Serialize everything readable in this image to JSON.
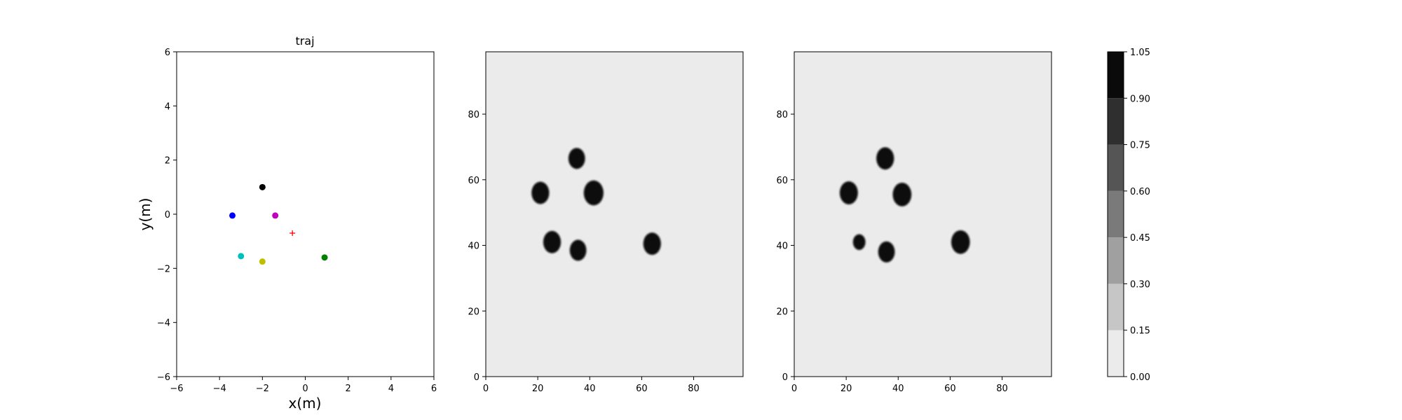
{
  "chart_data": [
    {
      "type": "scatter",
      "title": "traj",
      "xlabel": "x(m)",
      "ylabel": "y(m)",
      "xlim": [
        -6,
        6
      ],
      "ylim": [
        -6,
        6
      ],
      "xticks": [
        "−6",
        "−4",
        "−2",
        "0",
        "2",
        "4",
        "6"
      ],
      "xtick_values": [
        -6,
        -4,
        -2,
        0,
        2,
        4,
        6
      ],
      "yticks": [
        "−6",
        "−4",
        "−2",
        "0",
        "2",
        "4",
        "6"
      ],
      "ytick_values": [
        -6,
        -4,
        -2,
        0,
        2,
        4,
        6
      ],
      "grid": false,
      "points": [
        {
          "x": -2.0,
          "y": 1.0,
          "color": "#000000",
          "marker": "circle"
        },
        {
          "x": -3.4,
          "y": -0.05,
          "color": "#0000ff",
          "marker": "circle"
        },
        {
          "x": -1.4,
          "y": -0.05,
          "color": "#bf00bf",
          "marker": "circle"
        },
        {
          "x": -3.0,
          "y": -1.55,
          "color": "#00bfbf",
          "marker": "circle"
        },
        {
          "x": -2.0,
          "y": -1.75,
          "color": "#bfbf00",
          "marker": "circle"
        },
        {
          "x": 0.9,
          "y": -1.6,
          "color": "#008000",
          "marker": "circle"
        },
        {
          "x": -0.6,
          "y": -0.7,
          "color": "#ff0000",
          "marker": "plus"
        }
      ]
    },
    {
      "type": "heatmap",
      "xlim": [
        0,
        99
      ],
      "ylim": [
        0,
        99
      ],
      "xticks": [
        "0",
        "20",
        "40",
        "60",
        "80"
      ],
      "xtick_values": [
        0,
        20,
        40,
        60,
        80
      ],
      "yticks": [
        "0",
        "20",
        "40",
        "60",
        "80"
      ],
      "ytick_values": [
        0,
        20,
        40,
        60,
        80
      ],
      "background_value": 0.07,
      "blobs": [
        {
          "x": 35,
          "y": 66.5,
          "r": 3.2,
          "value": 1.0
        },
        {
          "x": 21,
          "y": 56,
          "r": 3.4,
          "value": 1.0
        },
        {
          "x": 41.5,
          "y": 56,
          "r": 3.8,
          "value": 1.0
        },
        {
          "x": 25.5,
          "y": 41,
          "r": 3.4,
          "value": 1.0
        },
        {
          "x": 35.5,
          "y": 38.5,
          "r": 3.2,
          "value": 1.0
        },
        {
          "x": 64,
          "y": 40.5,
          "r": 3.4,
          "value": 1.0
        }
      ]
    },
    {
      "type": "heatmap",
      "xlim": [
        0,
        99
      ],
      "ylim": [
        0,
        99
      ],
      "xticks": [
        "0",
        "20",
        "40",
        "60",
        "80"
      ],
      "xtick_values": [
        0,
        20,
        40,
        60,
        80
      ],
      "yticks": [
        "0",
        "20",
        "40",
        "60",
        "80"
      ],
      "ytick_values": [
        0,
        20,
        40,
        60,
        80
      ],
      "background_value": 0.07,
      "blobs": [
        {
          "x": 35,
          "y": 66.5,
          "r": 3.4,
          "value": 1.0
        },
        {
          "x": 21,
          "y": 56,
          "r": 3.5,
          "value": 1.0
        },
        {
          "x": 41.5,
          "y": 55.5,
          "r": 3.6,
          "value": 1.0
        },
        {
          "x": 25,
          "y": 41,
          "r": 2.4,
          "value": 1.0
        },
        {
          "x": 35.5,
          "y": 38,
          "r": 3.2,
          "value": 1.0
        },
        {
          "x": 64,
          "y": 41,
          "r": 3.6,
          "value": 1.0
        }
      ]
    },
    {
      "type": "colorbar",
      "levels": [
        0.0,
        0.15,
        0.3,
        0.45,
        0.6,
        0.75,
        0.9,
        1.05
      ],
      "ticks": [
        "0.00",
        "0.15",
        "0.30",
        "0.45",
        "0.60",
        "0.75",
        "0.90",
        "1.05"
      ],
      "colors": [
        "#ebebeb",
        "#c6c6c6",
        "#a0a0a0",
        "#7a7a7a",
        "#555555",
        "#2f2f2f",
        "#0a0a0a"
      ]
    }
  ]
}
